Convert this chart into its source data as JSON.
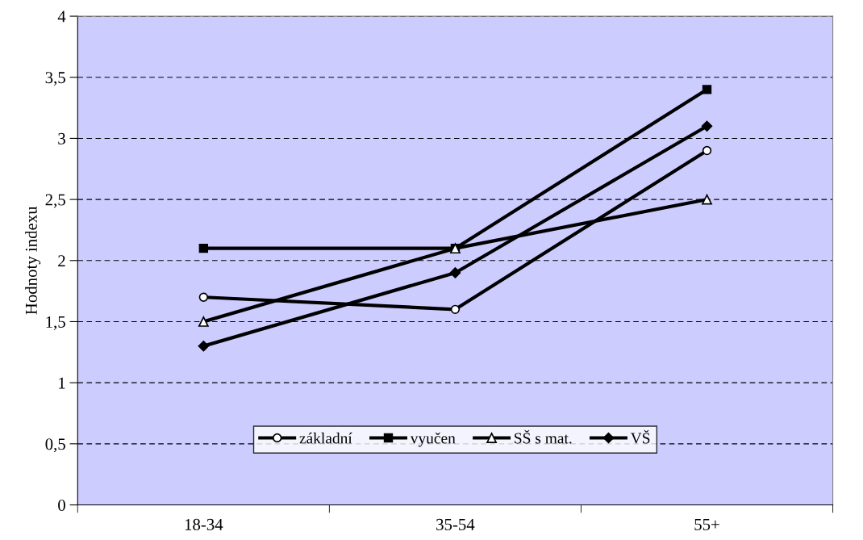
{
  "chart_data": {
    "type": "line",
    "ylabel": "Hodnoty indexu",
    "categories": [
      "18-34",
      "35-54",
      "55+"
    ],
    "series": [
      {
        "name": "základní",
        "color": "#000000",
        "values": [
          1.7,
          1.6,
          2.9
        ],
        "marker": "circle"
      },
      {
        "name": "vyučen",
        "color": "#000000",
        "values": [
          2.1,
          2.1,
          3.4
        ],
        "marker": "square"
      },
      {
        "name": "SŠ s mat.",
        "color": "#000000",
        "values": [
          1.5,
          2.1,
          2.5
        ],
        "marker": "triangle"
      },
      {
        "name": "VŠ",
        "color": "#000000",
        "values": [
          1.3,
          1.9,
          3.1
        ],
        "marker": "diamond"
      }
    ],
    "ylim": [
      0,
      4
    ],
    "yticks": [
      0,
      {
        "value": 0.5,
        "label": "0,5"
      },
      1,
      {
        "value": 1.5,
        "label": "1,5"
      },
      2,
      {
        "value": 2.5,
        "label": "2,5"
      },
      3,
      {
        "value": 3.5,
        "label": "3,5"
      },
      4
    ],
    "grid": "y",
    "legend": "bottom",
    "line_style": "solid"
  }
}
